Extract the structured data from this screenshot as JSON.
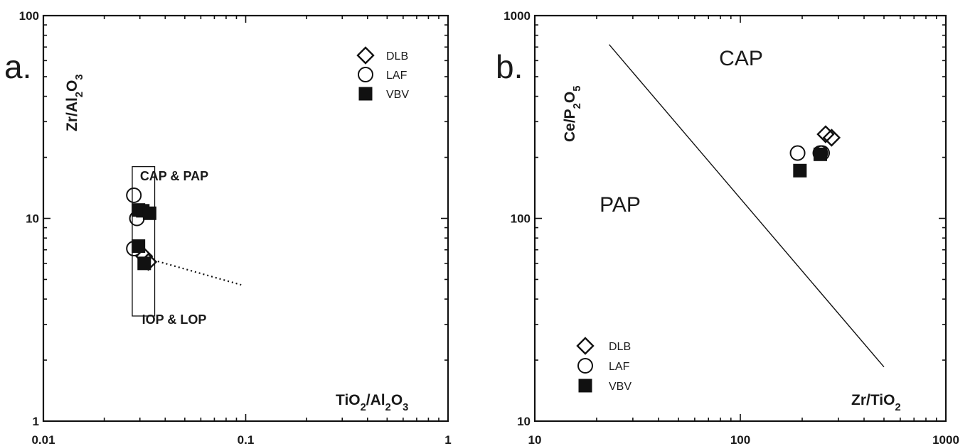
{
  "chart_data": [
    {
      "type": "scatter",
      "panel_letter": "a.",
      "x_scale": "log",
      "y_scale": "log",
      "xlim": [
        0.01,
        1
      ],
      "ylim": [
        1,
        100
      ],
      "x_ticks": [
        "0.01",
        "0.1",
        "1"
      ],
      "y_ticks": [
        "1",
        "10",
        "100"
      ],
      "xlabel": {
        "parts": [
          [
            "TiO",
            false
          ],
          [
            "2",
            true
          ],
          [
            "/Al",
            false
          ],
          [
            "2",
            true
          ],
          [
            "O",
            false
          ],
          [
            "3",
            true
          ]
        ]
      },
      "ylabel": {
        "parts": [
          [
            "Zr/Al",
            false
          ],
          [
            "2",
            true
          ],
          [
            "O",
            false
          ],
          [
            "3",
            true
          ]
        ]
      },
      "legend": {
        "placement": "top-right",
        "entries": [
          "DLB",
          "LAF",
          "VBV"
        ]
      },
      "field_box": {
        "x": [
          0.0275,
          0.0355
        ],
        "y": [
          3.3,
          18
        ]
      },
      "field_labels": [
        "CAP & PAP",
        "IOP & LOP"
      ],
      "dotted_line": {
        "x": [
          0.0335,
          0.095
        ],
        "y": [
          6.3,
          4.7
        ]
      },
      "series": [
        {
          "name": "DLB",
          "marker": "diamond-open",
          "points": [
            [
              0.0315,
              6.5
            ],
            [
              0.033,
              6.1
            ]
          ]
        },
        {
          "name": "LAF",
          "marker": "circle-open",
          "points": [
            [
              0.028,
              13
            ],
            [
              0.029,
              10
            ],
            [
              0.028,
              7.1
            ]
          ]
        },
        {
          "name": "VBV",
          "marker": "square-filled",
          "points": [
            [
              0.0295,
              11
            ],
            [
              0.031,
              10.9
            ],
            [
              0.0335,
              10.6
            ],
            [
              0.0295,
              7.3
            ],
            [
              0.0315,
              6
            ]
          ]
        }
      ]
    },
    {
      "type": "scatter",
      "panel_letter": "b.",
      "x_scale": "log",
      "y_scale": "log",
      "xlim": [
        10,
        1000
      ],
      "ylim": [
        10,
        1000
      ],
      "x_ticks": [
        "10",
        "100",
        "1000"
      ],
      "y_ticks": [
        "10",
        "100",
        "1000"
      ],
      "xlabel": {
        "parts": [
          [
            "Zr/TiO",
            false
          ],
          [
            "2",
            true
          ]
        ]
      },
      "ylabel": {
        "parts": [
          [
            "Ce/P",
            false
          ],
          [
            "2",
            true
          ],
          [
            "O",
            false
          ],
          [
            "5",
            true
          ]
        ]
      },
      "legend": {
        "placement": "bottom-left",
        "entries": [
          "DLB",
          "LAF",
          "VBV"
        ]
      },
      "field_labels": [
        "CAP",
        "PAP"
      ],
      "boundary_line": {
        "x": [
          23,
          500
        ],
        "y": [
          720,
          18.5
        ]
      },
      "series": [
        {
          "name": "DLB",
          "marker": "diamond-open",
          "points": [
            [
              260,
              260
            ],
            [
              278,
              250
            ]
          ]
        },
        {
          "name": "LAF",
          "marker": "circle-open",
          "points": [
            [
              190,
              210
            ],
            [
              245,
              210
            ],
            [
              250,
              210
            ]
          ]
        },
        {
          "name": "VBV",
          "marker": "square-filled",
          "points": [
            [
              195,
              172
            ],
            [
              245,
              207
            ]
          ]
        }
      ]
    }
  ]
}
